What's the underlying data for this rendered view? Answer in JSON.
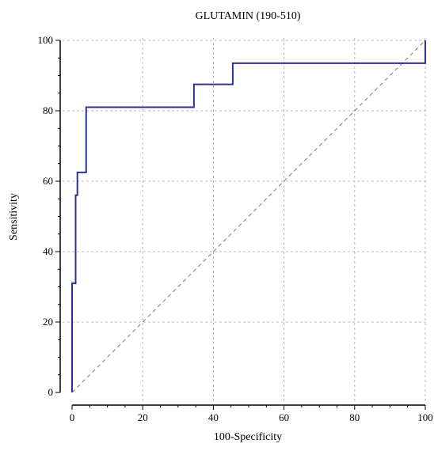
{
  "chart_data": {
    "type": "line",
    "title": "GLUTAMIN (190-510)",
    "xlabel": "100-Specificity",
    "ylabel": "Sensitivity",
    "xlim": [
      0,
      100
    ],
    "ylim": [
      0,
      100
    ],
    "xticks": [
      0,
      20,
      40,
      60,
      80,
      100
    ],
    "yticks": [
      0,
      20,
      40,
      60,
      80,
      100
    ],
    "grid": true,
    "colors": {
      "roc": "#2e3192",
      "diagonal": "#7a7a7a",
      "grid": "#b8b8b8",
      "axis": "#000000"
    },
    "series": [
      {
        "style": "step",
        "x": [
          0,
          0,
          1,
          1,
          1.5,
          1.5,
          2.5,
          2.5,
          4,
          4,
          34.5,
          34.5,
          45.5,
          45.5,
          100,
          100
        ],
        "y": [
          0,
          31,
          31,
          56,
          56,
          62.5,
          62.5,
          62.5,
          62.5,
          81,
          81,
          87.5,
          87.5,
          93.5,
          93.5,
          100
        ]
      },
      {
        "style": "dashed",
        "x": [
          0,
          100
        ],
        "y": [
          0,
          100
        ]
      }
    ]
  }
}
